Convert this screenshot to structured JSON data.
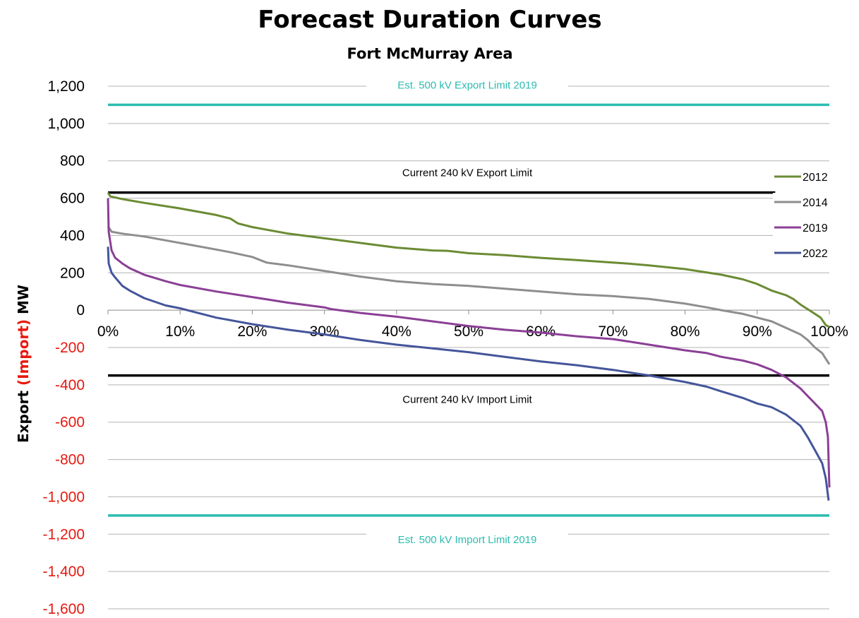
{
  "chart_data": {
    "type": "line",
    "title": "Forecast Duration Curves",
    "subtitle": "Fort McMurray Area",
    "ylabel": {
      "part1": "Export ",
      "part2": "(Import)",
      "part3": " MW"
    },
    "xlabel": "",
    "xlim": [
      0,
      100
    ],
    "ylim": [
      -1600,
      1200
    ],
    "xticks": [
      {
        "value": 0,
        "label": "0%"
      },
      {
        "value": 10,
        "label": "10%"
      },
      {
        "value": 20,
        "label": "20%"
      },
      {
        "value": 30,
        "label": "30%"
      },
      {
        "value": 40,
        "label": "40%"
      },
      {
        "value": 50,
        "label": "50%"
      },
      {
        "value": 60,
        "label": "60%"
      },
      {
        "value": 70,
        "label": "70%"
      },
      {
        "value": 80,
        "label": "80%"
      },
      {
        "value": 90,
        "label": "90%"
      },
      {
        "value": 100,
        "label": "100%"
      }
    ],
    "yticks": [
      {
        "value": 1200,
        "label": "1,200"
      },
      {
        "value": 1000,
        "label": "1,000"
      },
      {
        "value": 800,
        "label": "800"
      },
      {
        "value": 600,
        "label": "600"
      },
      {
        "value": 400,
        "label": "400"
      },
      {
        "value": 200,
        "label": "200"
      },
      {
        "value": 0,
        "label": "0"
      },
      {
        "value": -200,
        "label": "-200"
      },
      {
        "value": -400,
        "label": "-400"
      },
      {
        "value": -600,
        "label": "-600"
      },
      {
        "value": -800,
        "label": "-800"
      },
      {
        "value": -1000,
        "label": "-1,000"
      },
      {
        "value": -1200,
        "label": "-1,200"
      },
      {
        "value": -1400,
        "label": "-1,400"
      },
      {
        "value": -1600,
        "label": "-1,600"
      }
    ],
    "grid": "horizontal",
    "legend_position": "right",
    "colors": {
      "positive_tick": "#000000",
      "negative_tick": "#e8190f",
      "gridline": "#b3b3b3",
      "import_word": "#e8190f"
    },
    "reference_lines": [
      {
        "name": "Est. 500 kV Export Limit 2019",
        "y": 1100,
        "color": "#2cbcb0",
        "label_color": "#2cbcb0",
        "x_range": [
          0,
          100
        ]
      },
      {
        "name": "Current 240 kV Export Limit",
        "y": 630,
        "color": "#000000",
        "label_color": "#000000",
        "x_range": [
          0,
          92.5
        ]
      },
      {
        "name": "Current 240 kV Import Limit",
        "y": -350,
        "color": "#000000",
        "label_color": "#000000",
        "x_range": [
          0,
          100
        ]
      },
      {
        "name": "Est. 500 kV Import Limit 2019",
        "y": -1100,
        "color": "#2cbcb0",
        "label_color": "#2cbcb0",
        "x_range": [
          0,
          100
        ]
      }
    ],
    "series": [
      {
        "name": "2012",
        "color": "#6b8b33",
        "points": [
          [
            0,
            630
          ],
          [
            0.3,
            610
          ],
          [
            2,
            595
          ],
          [
            5,
            575
          ],
          [
            10,
            545
          ],
          [
            15,
            510
          ],
          [
            17,
            490
          ],
          [
            18,
            465
          ],
          [
            20,
            445
          ],
          [
            25,
            410
          ],
          [
            30,
            385
          ],
          [
            35,
            360
          ],
          [
            40,
            335
          ],
          [
            45,
            320
          ],
          [
            47,
            318
          ],
          [
            50,
            305
          ],
          [
            55,
            295
          ],
          [
            60,
            280
          ],
          [
            65,
            268
          ],
          [
            70,
            255
          ],
          [
            72,
            250
          ],
          [
            75,
            240
          ],
          [
            80,
            220
          ],
          [
            85,
            190
          ],
          [
            88,
            165
          ],
          [
            90,
            140
          ],
          [
            92,
            105
          ],
          [
            94,
            80
          ],
          [
            95,
            60
          ],
          [
            96,
            30
          ],
          [
            97,
            5
          ],
          [
            98,
            -20
          ],
          [
            98.8,
            -40
          ],
          [
            99.5,
            -80
          ],
          [
            100,
            -90
          ]
        ]
      },
      {
        "name": "2014",
        "color": "#8e8e8e",
        "points": [
          [
            0,
            450
          ],
          [
            0.5,
            420
          ],
          [
            2,
            410
          ],
          [
            5,
            395
          ],
          [
            10,
            360
          ],
          [
            15,
            325
          ],
          [
            17,
            310
          ],
          [
            20,
            285
          ],
          [
            22,
            255
          ],
          [
            25,
            240
          ],
          [
            30,
            210
          ],
          [
            35,
            180
          ],
          [
            40,
            155
          ],
          [
            45,
            140
          ],
          [
            50,
            130
          ],
          [
            55,
            115
          ],
          [
            60,
            100
          ],
          [
            65,
            85
          ],
          [
            70,
            75
          ],
          [
            75,
            60
          ],
          [
            80,
            35
          ],
          [
            83,
            15
          ],
          [
            85,
            0
          ],
          [
            88,
            -20
          ],
          [
            90,
            -40
          ],
          [
            92,
            -60
          ],
          [
            94,
            -95
          ],
          [
            96,
            -130
          ],
          [
            97,
            -160
          ],
          [
            98,
            -200
          ],
          [
            99,
            -230
          ],
          [
            99.5,
            -260
          ],
          [
            100,
            -290
          ]
        ]
      },
      {
        "name": "2019",
        "color": "#8b3f96",
        "points": [
          [
            0,
            600
          ],
          [
            0.1,
            420
          ],
          [
            0.5,
            320
          ],
          [
            1,
            280
          ],
          [
            2,
            250
          ],
          [
            3,
            225
          ],
          [
            5,
            190
          ],
          [
            8,
            155
          ],
          [
            10,
            135
          ],
          [
            15,
            100
          ],
          [
            20,
            70
          ],
          [
            25,
            40
          ],
          [
            30,
            15
          ],
          [
            31,
            5
          ],
          [
            35,
            -15
          ],
          [
            40,
            -35
          ],
          [
            45,
            -60
          ],
          [
            50,
            -85
          ],
          [
            55,
            -105
          ],
          [
            60,
            -120
          ],
          [
            65,
            -140
          ],
          [
            70,
            -155
          ],
          [
            75,
            -185
          ],
          [
            80,
            -215
          ],
          [
            83,
            -230
          ],
          [
            85,
            -250
          ],
          [
            88,
            -270
          ],
          [
            90,
            -290
          ],
          [
            92,
            -320
          ],
          [
            94,
            -360
          ],
          [
            96,
            -420
          ],
          [
            97,
            -460
          ],
          [
            98,
            -500
          ],
          [
            99,
            -540
          ],
          [
            99.5,
            -600
          ],
          [
            99.8,
            -680
          ],
          [
            100,
            -950
          ]
        ]
      },
      {
        "name": "2022",
        "color": "#44559a",
        "points": [
          [
            0,
            340
          ],
          [
            0.1,
            250
          ],
          [
            0.5,
            200
          ],
          [
            1,
            175
          ],
          [
            2,
            130
          ],
          [
            3,
            105
          ],
          [
            5,
            65
          ],
          [
            8,
            25
          ],
          [
            10,
            10
          ],
          [
            12,
            -10
          ],
          [
            15,
            -40
          ],
          [
            20,
            -75
          ],
          [
            25,
            -105
          ],
          [
            30,
            -130
          ],
          [
            35,
            -160
          ],
          [
            40,
            -185
          ],
          [
            45,
            -205
          ],
          [
            50,
            -225
          ],
          [
            55,
            -250
          ],
          [
            60,
            -275
          ],
          [
            65,
            -295
          ],
          [
            70,
            -320
          ],
          [
            75,
            -350
          ],
          [
            80,
            -385
          ],
          [
            83,
            -410
          ],
          [
            85,
            -435
          ],
          [
            88,
            -470
          ],
          [
            90,
            -500
          ],
          [
            92,
            -520
          ],
          [
            94,
            -560
          ],
          [
            96,
            -620
          ],
          [
            97,
            -680
          ],
          [
            98,
            -750
          ],
          [
            99,
            -820
          ],
          [
            99.5,
            -900
          ],
          [
            99.9,
            -1020
          ]
        ]
      }
    ]
  }
}
